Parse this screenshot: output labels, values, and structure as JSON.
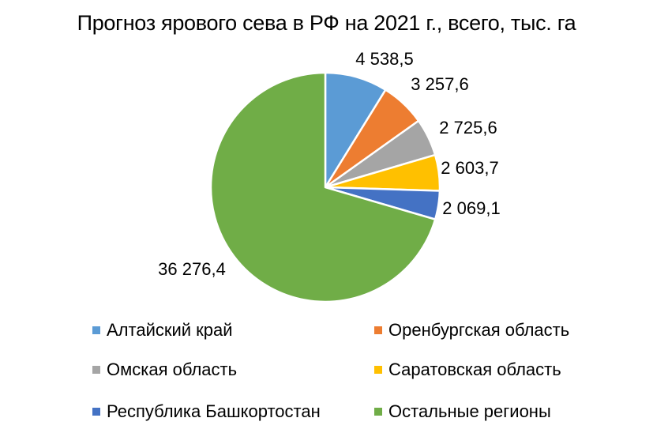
{
  "chart_data": {
    "type": "pie",
    "title": "Прогноз ярового сева в РФ на 2021 г., всего, тыс. га",
    "legend_position": "bottom",
    "slices": [
      {
        "label": "Алтайский край",
        "value": 4538.5,
        "value_label": "4 538,5",
        "color": "#5B9BD5"
      },
      {
        "label": "Оренбургская область",
        "value": 3257.6,
        "value_label": "3 257,6",
        "color": "#ED7D31"
      },
      {
        "label": "Омская область",
        "value": 2725.6,
        "value_label": "2 725,6",
        "color": "#A5A5A5"
      },
      {
        "label": "Саратовская область",
        "value": 2603.7,
        "value_label": "2 603,7",
        "color": "#FFC000"
      },
      {
        "label": "Республика Башкортостан",
        "value": 2069.1,
        "value_label": "2 069,1",
        "color": "#4472C4"
      },
      {
        "label": "Остальные регионы",
        "value": 36276.4,
        "value_label": "36 276,4",
        "color": "#70AD47"
      }
    ]
  }
}
